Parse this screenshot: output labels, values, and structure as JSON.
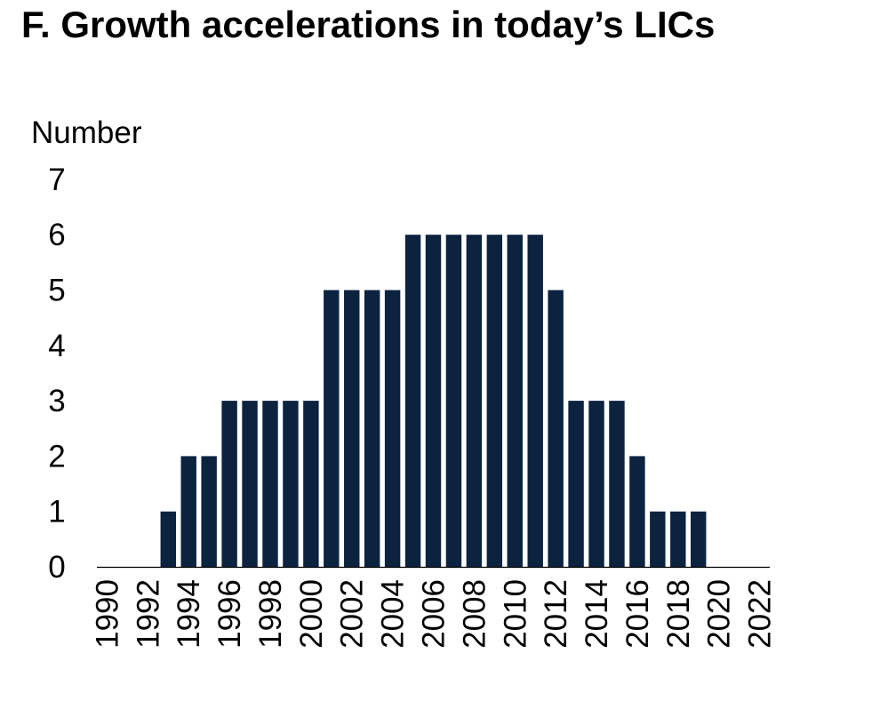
{
  "chart_data": {
    "type": "bar",
    "title": "F. Growth accelerations in today’s LICs",
    "ylabel": "Number",
    "xlabel": "",
    "ylim": [
      0,
      7
    ],
    "yticks": [
      "0",
      "1",
      "2",
      "3",
      "4",
      "5",
      "6",
      "7"
    ],
    "categories": [
      "1990",
      "1991",
      "1992",
      "1993",
      "1994",
      "1995",
      "1996",
      "1997",
      "1998",
      "1999",
      "2000",
      "2001",
      "2002",
      "2003",
      "2004",
      "2005",
      "2006",
      "2007",
      "2008",
      "2009",
      "2010",
      "2011",
      "2012",
      "2013",
      "2014",
      "2015",
      "2016",
      "2017",
      "2018",
      "2019",
      "2020",
      "2021",
      "2022"
    ],
    "xtick_labels": [
      "1990",
      "1992",
      "1994",
      "1996",
      "1998",
      "2000",
      "2002",
      "2004",
      "2006",
      "2008",
      "2010",
      "2012",
      "2014",
      "2016",
      "2018",
      "2020",
      "2022"
    ],
    "values": [
      0,
      0,
      0,
      1,
      2,
      2,
      3,
      3,
      3,
      3,
      3,
      5,
      5,
      5,
      5,
      6,
      6,
      6,
      6,
      6,
      6,
      6,
      5,
      3,
      3,
      3,
      2,
      1,
      1,
      1,
      0,
      0,
      0
    ],
    "bar_color": "#0c2340",
    "grid": false,
    "legend": "none"
  }
}
